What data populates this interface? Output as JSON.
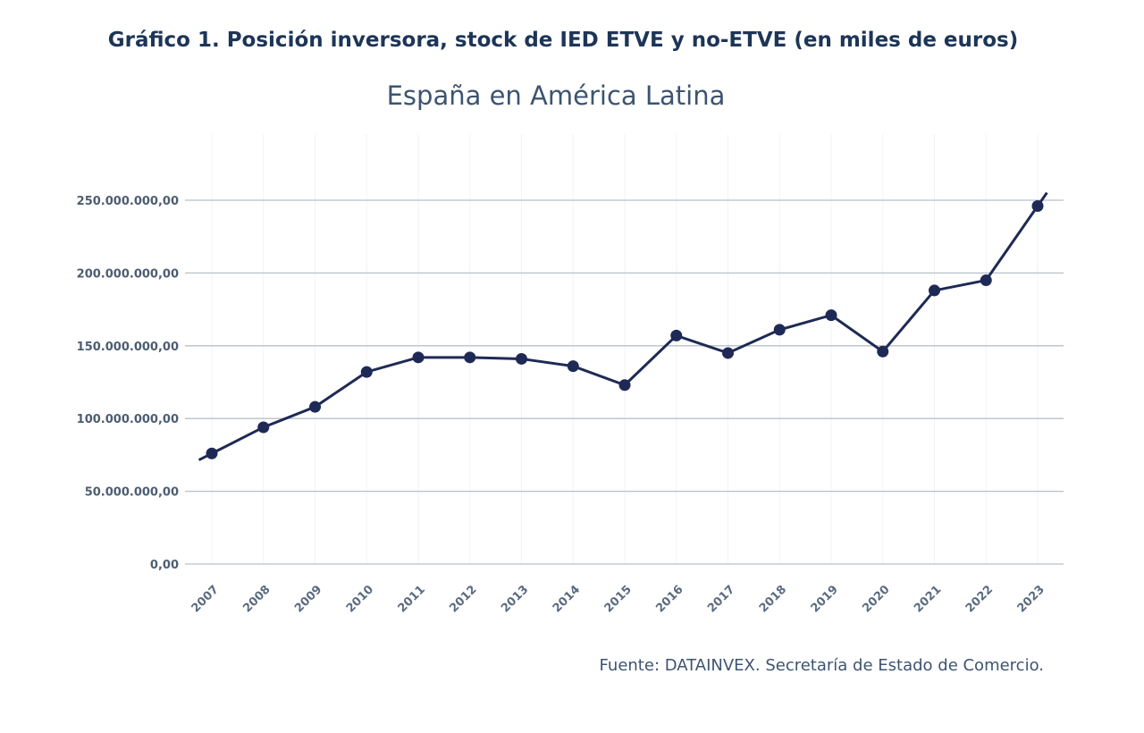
{
  "chart_data": {
    "type": "line",
    "title": "Gráfico 1. Posición inversora, stock de IED ETVE y no-ETVE (en miles de euros)",
    "subtitle": "España en América Latina",
    "source": "Fuente: DATAINVEX. Secretaría de Estado de Comercio.",
    "xlabel": "",
    "ylabel": "",
    "ylim": [
      0,
      250000000
    ],
    "grid": "horizontal",
    "yticks": [
      0,
      50000000,
      100000000,
      150000000,
      200000000,
      250000000
    ],
    "ytick_labels": [
      "0,00",
      "50.000.000,00",
      "100.000.000,00",
      "150.000.000,00",
      "200.000.000,00",
      "250.000.000,00"
    ],
    "categories": [
      "2007",
      "2008",
      "2009",
      "2010",
      "2011",
      "2012",
      "2013",
      "2014",
      "2015",
      "2016",
      "2017",
      "2018",
      "2019",
      "2020",
      "2021",
      "2022",
      "2023"
    ],
    "values": [
      76000000,
      94000000,
      108000000,
      132000000,
      142000000,
      142000000,
      141000000,
      136000000,
      123000000,
      157000000,
      145000000,
      161000000,
      171000000,
      146000000,
      188000000,
      195000000,
      246000000
    ],
    "line_color": "#1e2a55",
    "grid_color": "#b8c0ca"
  }
}
